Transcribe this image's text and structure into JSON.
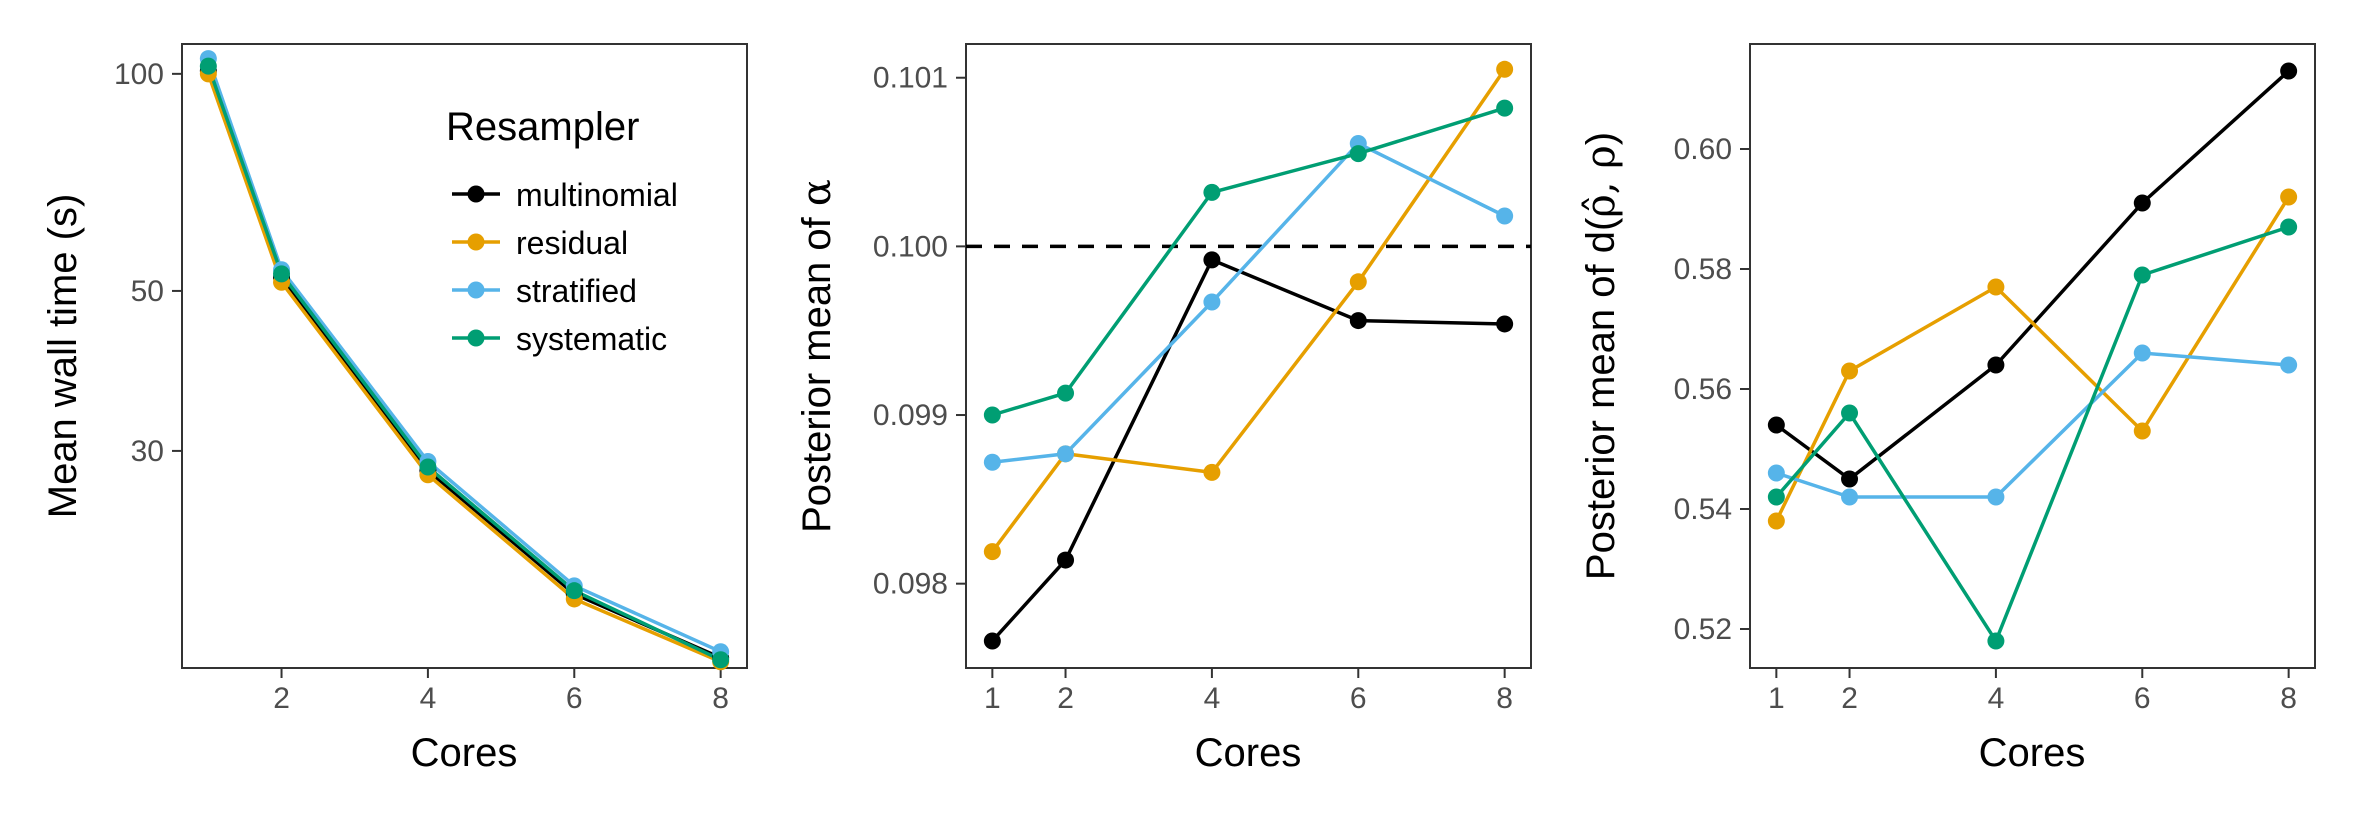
{
  "chart_data": [
    {
      "type": "line",
      "x": [
        1,
        2,
        4,
        6,
        8
      ],
      "xlabel": "Cores",
      "ylabel": "Mean wall time (s)",
      "yscale": "log",
      "ylim": [
        15,
        110
      ],
      "yticks": [
        30,
        50,
        100
      ],
      "xticks": [
        2,
        4,
        6,
        8
      ],
      "legend": {
        "title": "Resampler",
        "placement": "top-right",
        "entries": [
          "multinomial",
          "residual",
          "stratified",
          "systematic"
        ]
      },
      "series": [
        {
          "name": "multinomial",
          "color": "#000000",
          "values": [
            101.0,
            52.2,
            28.2,
            19.0,
            15.5
          ]
        },
        {
          "name": "residual",
          "color": "#E69F00",
          "values": [
            100.0,
            51.4,
            27.8,
            18.7,
            15.3
          ]
        },
        {
          "name": "stratified",
          "color": "#56B4E9",
          "values": [
            105.0,
            53.5,
            29.0,
            19.5,
            15.8
          ]
        },
        {
          "name": "systematic",
          "color": "#009E73",
          "values": [
            102.5,
            52.8,
            28.5,
            19.2,
            15.4
          ]
        }
      ]
    },
    {
      "type": "line",
      "x": [
        1,
        2,
        4,
        6,
        8
      ],
      "xlabel": "Cores",
      "ylabel": "Posterior mean of ",
      "ylabel_symbol": "α",
      "ylim": [
        0.0975,
        0.1012
      ],
      "yticks": [
        "0.098",
        "0.099",
        "0.100",
        "0.101"
      ],
      "xticks": [
        1,
        2,
        4,
        6,
        8
      ],
      "reference_line": {
        "y": 0.1,
        "style": "dashed",
        "color": "#000000"
      },
      "series": [
        {
          "name": "multinomial",
          "color": "#000000",
          "values": [
            0.09766,
            0.09814,
            0.09992,
            0.09956,
            0.09954
          ]
        },
        {
          "name": "residual",
          "color": "#E69F00",
          "values": [
            0.09819,
            0.09877,
            0.09866,
            0.09979,
            0.10105
          ]
        },
        {
          "name": "stratified",
          "color": "#56B4E9",
          "values": [
            0.09872,
            0.09877,
            0.09967,
            0.10061,
            0.10018
          ]
        },
        {
          "name": "systematic",
          "color": "#009E73",
          "values": [
            0.099,
            0.09913,
            0.10032,
            0.10055,
            0.10082
          ]
        }
      ]
    },
    {
      "type": "line",
      "x": [
        1,
        2,
        4,
        6,
        8
      ],
      "xlabel": "Cores",
      "ylabel": "Posterior mean of d(",
      "ylabel_symbol": "ρ̂, ρ",
      "ylabel_suffix": ")",
      "ylim": [
        0.5135,
        0.6175
      ],
      "yticks": [
        "0.52",
        "0.54",
        "0.56",
        "0.58",
        "0.60"
      ],
      "xticks": [
        1,
        2,
        4,
        6,
        8
      ],
      "series": [
        {
          "name": "multinomial",
          "color": "#000000",
          "values": [
            0.554,
            0.545,
            0.564,
            0.591,
            0.613
          ]
        },
        {
          "name": "residual",
          "color": "#E69F00",
          "values": [
            0.538,
            0.563,
            0.577,
            0.553,
            0.592
          ]
        },
        {
          "name": "stratified",
          "color": "#56B4E9",
          "values": [
            0.546,
            0.542,
            0.542,
            0.566,
            0.564
          ]
        },
        {
          "name": "systematic",
          "color": "#009E73",
          "values": [
            0.542,
            0.556,
            0.518,
            0.579,
            0.587
          ]
        }
      ]
    }
  ]
}
